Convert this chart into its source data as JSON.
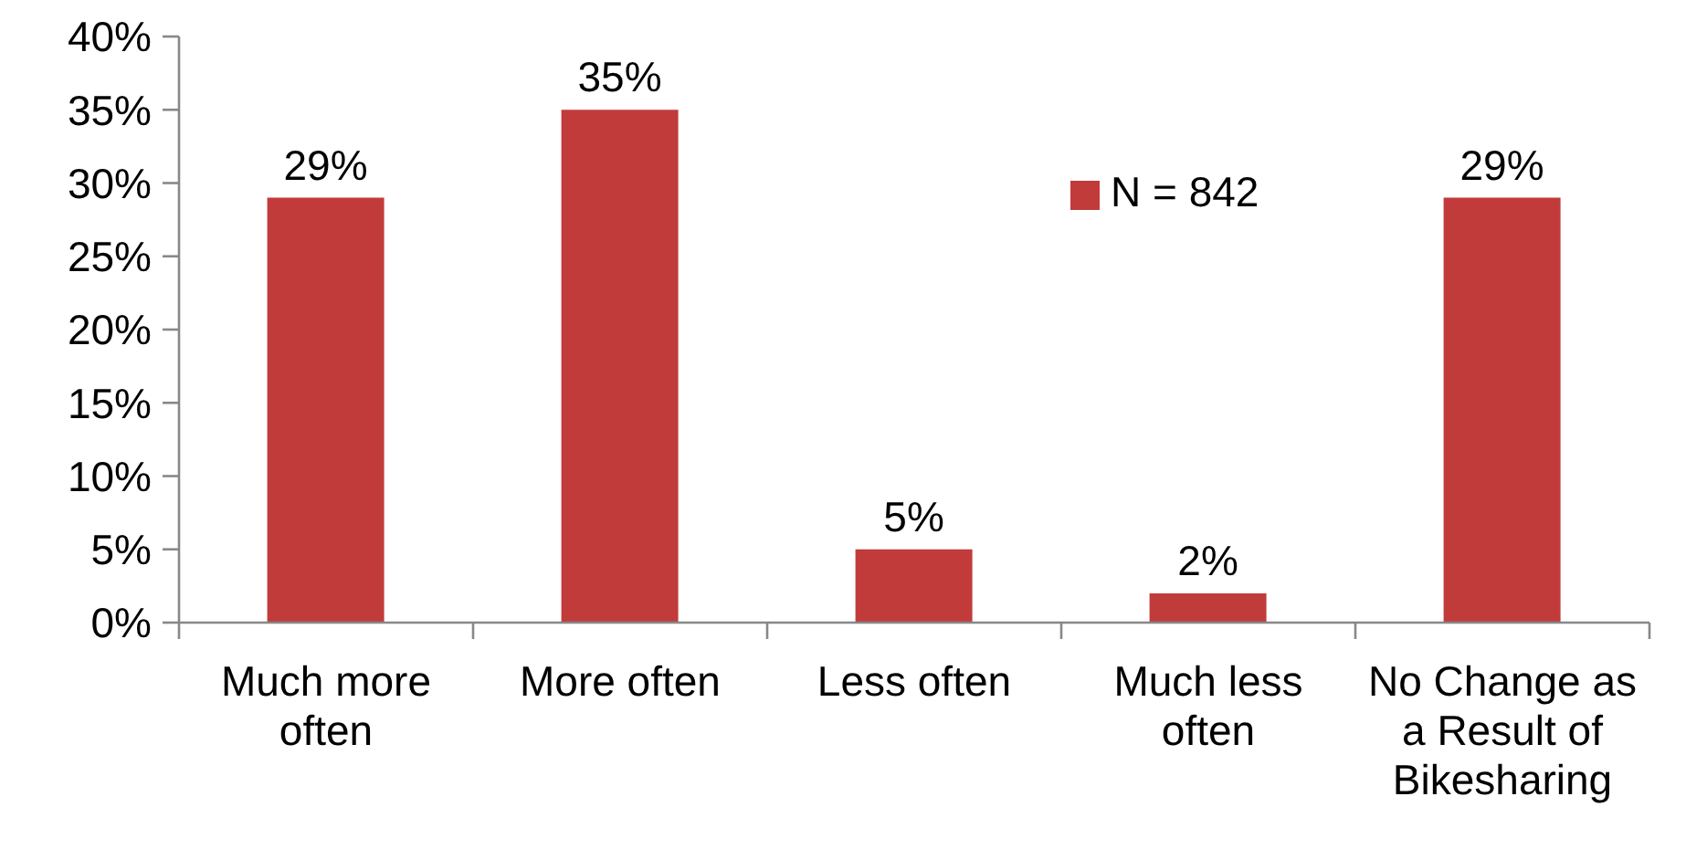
{
  "chart_data": {
    "type": "bar",
    "categories": [
      "Much more often",
      "More often",
      "Less often",
      "Much less often",
      "No Change as a Result of Bikesharing"
    ],
    "series": [
      {
        "name": "N = 842",
        "color": "#c23b3b",
        "values": [
          29,
          35,
          5,
          2,
          29
        ],
        "value_labels": [
          "29%",
          "35%",
          "5%",
          "2%",
          "29%"
        ]
      }
    ],
    "ylim": [
      0,
      40
    ],
    "yticks": [
      {
        "value": 0,
        "label": "0%"
      },
      {
        "value": 5,
        "label": "5%"
      },
      {
        "value": 10,
        "label": "10%"
      },
      {
        "value": 15,
        "label": "15%"
      },
      {
        "value": 20,
        "label": "20%"
      },
      {
        "value": 25,
        "label": "25%"
      },
      {
        "value": 30,
        "label": "30%"
      },
      {
        "value": 35,
        "label": "35%"
      },
      {
        "value": 40,
        "label": "40%"
      }
    ],
    "grid": false,
    "legend": "top right"
  }
}
